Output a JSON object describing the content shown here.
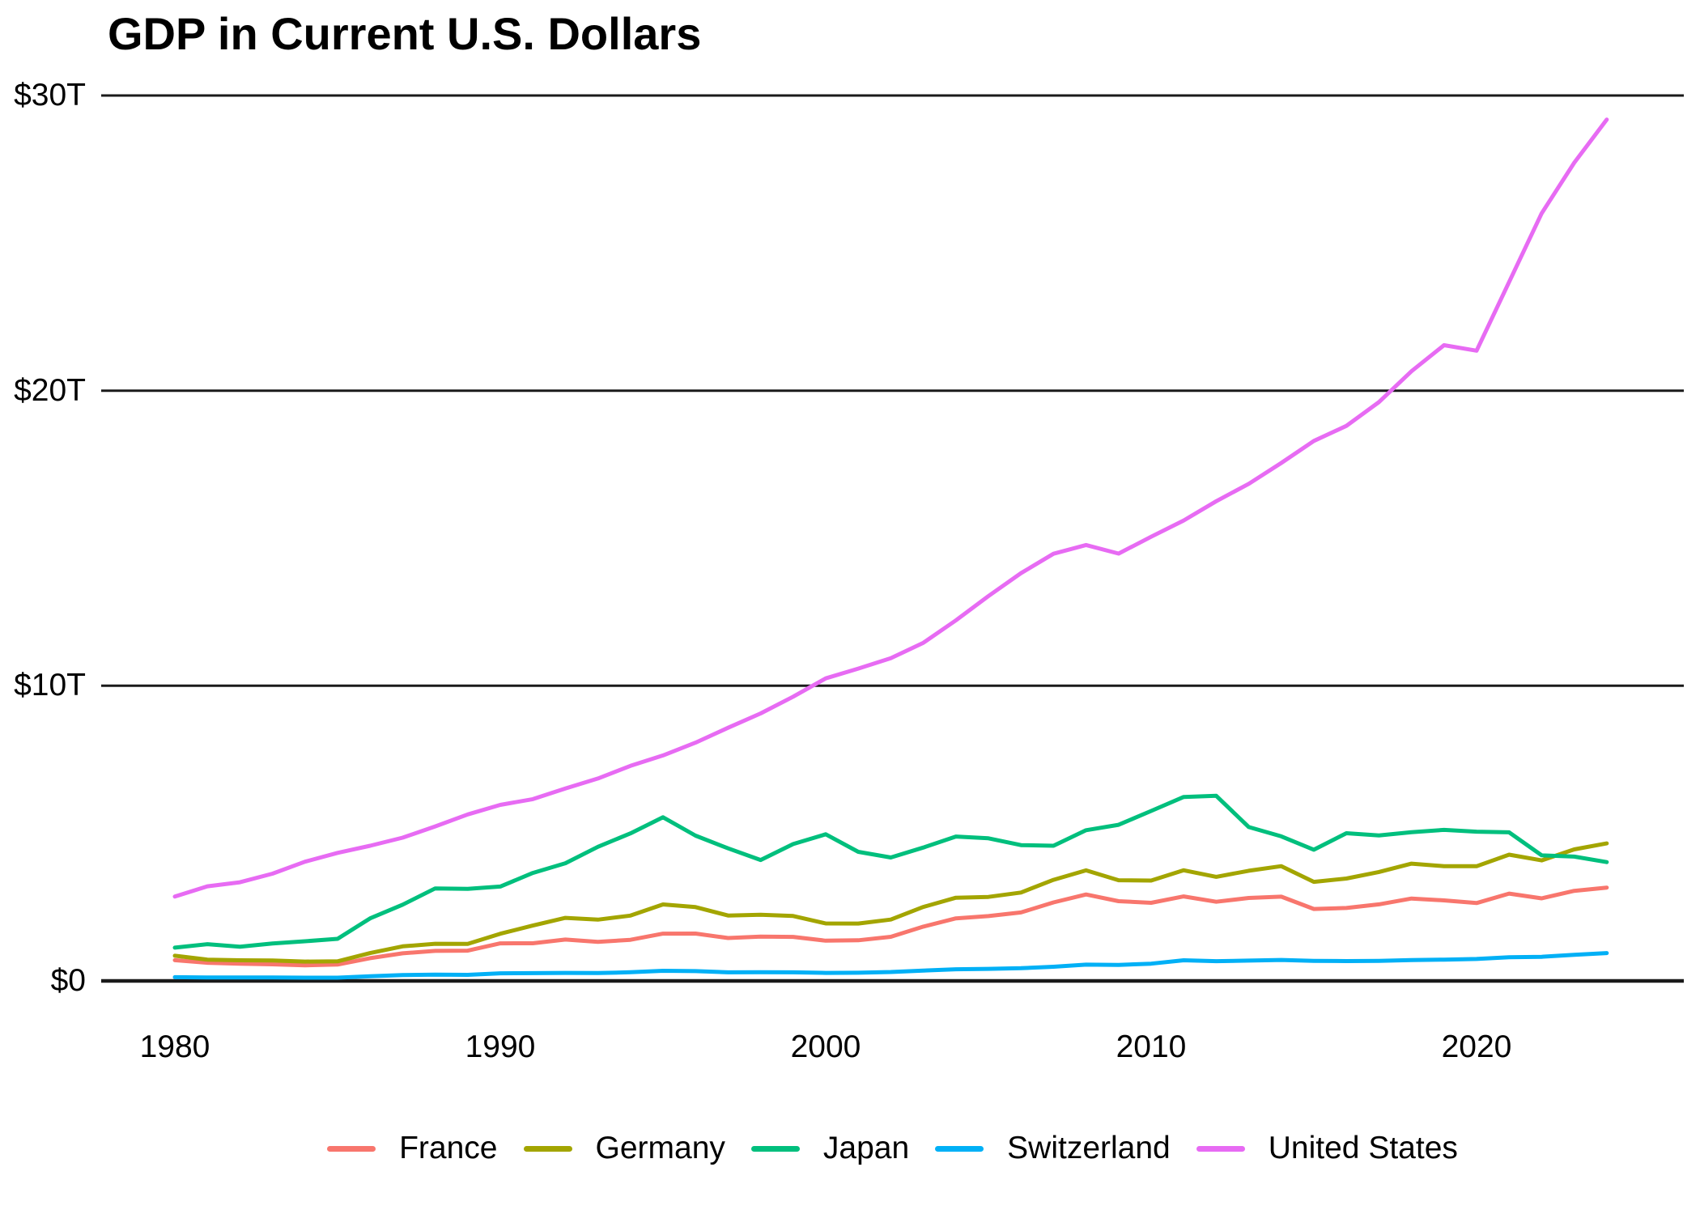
{
  "page": {
    "background": "#FFFFFF"
  },
  "chart_data": {
    "type": "line",
    "title": "GDP in Current U.S. Dollars",
    "y_unit": "trillions of current U.S. dollars",
    "xlim": [
      1980,
      2024
    ],
    "ylim": [
      0,
      30
    ],
    "grid": "horizontal",
    "grid_color": "#1a1a1a",
    "legend_position": "bottom-center",
    "x_ticks": [
      "1980",
      "1990",
      "2000",
      "2010",
      "2020"
    ],
    "y_ticks": [
      {
        "label": "$0",
        "value": 0
      },
      {
        "label": "$10T",
        "value": 10
      },
      {
        "label": "$20T",
        "value": 20
      },
      {
        "label": "$30T",
        "value": 30
      }
    ],
    "x": [
      1980,
      1981,
      1982,
      1983,
      1984,
      1985,
      1986,
      1987,
      1988,
      1989,
      1990,
      1991,
      1992,
      1993,
      1994,
      1995,
      1996,
      1997,
      1998,
      1999,
      2000,
      2001,
      2002,
      2003,
      2004,
      2005,
      2006,
      2007,
      2008,
      2009,
      2010,
      2011,
      2012,
      2013,
      2014,
      2015,
      2016,
      2017,
      2018,
      2019,
      2020,
      2021,
      2022,
      2023,
      2024
    ],
    "series": [
      {
        "name": "France",
        "color": "#F8766D",
        "values": [
          0.701,
          0.615,
          0.584,
          0.561,
          0.53,
          0.553,
          0.771,
          0.934,
          1.018,
          1.025,
          1.272,
          1.275,
          1.401,
          1.322,
          1.394,
          1.601,
          1.605,
          1.452,
          1.503,
          1.492,
          1.362,
          1.377,
          1.494,
          1.84,
          2.119,
          2.196,
          2.32,
          2.66,
          2.93,
          2.7,
          2.645,
          2.862,
          2.683,
          2.811,
          2.855,
          2.439,
          2.472,
          2.595,
          2.791,
          2.729,
          2.639,
          2.959,
          2.796,
          3.052,
          3.162
        ]
      },
      {
        "name": "Germany",
        "color": "#A3A500",
        "values": [
          0.854,
          0.722,
          0.7,
          0.695,
          0.655,
          0.663,
          0.944,
          1.171,
          1.26,
          1.252,
          1.598,
          1.877,
          2.137,
          2.077,
          2.212,
          2.592,
          2.5,
          2.216,
          2.244,
          2.2,
          1.948,
          1.945,
          2.079,
          2.506,
          2.819,
          2.846,
          2.994,
          3.425,
          3.745,
          3.411,
          3.399,
          3.749,
          3.527,
          3.733,
          3.889,
          3.357,
          3.469,
          3.69,
          3.974,
          3.889,
          3.887,
          4.279,
          4.082,
          4.456,
          4.66
        ]
      },
      {
        "name": "Japan",
        "color": "#00BF7D",
        "values": [
          1.128,
          1.245,
          1.157,
          1.268,
          1.345,
          1.427,
          2.121,
          2.584,
          3.134,
          3.117,
          3.197,
          3.657,
          3.988,
          4.544,
          4.998,
          5.546,
          4.923,
          4.492,
          4.098,
          4.636,
          4.968,
          4.374,
          4.182,
          4.519,
          4.893,
          4.831,
          4.601,
          4.579,
          5.106,
          5.289,
          5.759,
          6.233,
          6.272,
          5.212,
          4.897,
          4.444,
          5.004,
          4.931,
          5.041,
          5.118,
          5.056,
          5.034,
          4.256,
          4.213,
          4.026
        ]
      },
      {
        "name": "Switzerland",
        "color": "#00B0F6",
        "values": [
          0.125,
          0.114,
          0.114,
          0.114,
          0.109,
          0.111,
          0.157,
          0.197,
          0.213,
          0.205,
          0.258,
          0.262,
          0.272,
          0.266,
          0.294,
          0.342,
          0.332,
          0.29,
          0.296,
          0.29,
          0.272,
          0.278,
          0.301,
          0.352,
          0.394,
          0.408,
          0.43,
          0.479,
          0.552,
          0.542,
          0.583,
          0.699,
          0.668,
          0.688,
          0.709,
          0.679,
          0.671,
          0.68,
          0.706,
          0.722,
          0.742,
          0.8,
          0.818,
          0.885,
          0.942
        ]
      },
      {
        "name": "United States",
        "color": "#E76BF3",
        "values": [
          2.857,
          3.207,
          3.344,
          3.634,
          4.038,
          4.339,
          4.58,
          4.855,
          5.236,
          5.642,
          5.963,
          6.158,
          6.52,
          6.859,
          7.287,
          7.64,
          8.073,
          8.578,
          9.063,
          9.631,
          10.251,
          10.582,
          10.936,
          11.458,
          12.217,
          13.039,
          13.816,
          14.474,
          14.77,
          14.478,
          15.049,
          15.6,
          16.254,
          16.843,
          17.551,
          18.295,
          18.805,
          19.612,
          20.657,
          21.54,
          21.354,
          23.681,
          26.007,
          27.721,
          29.185
        ]
      }
    ]
  }
}
